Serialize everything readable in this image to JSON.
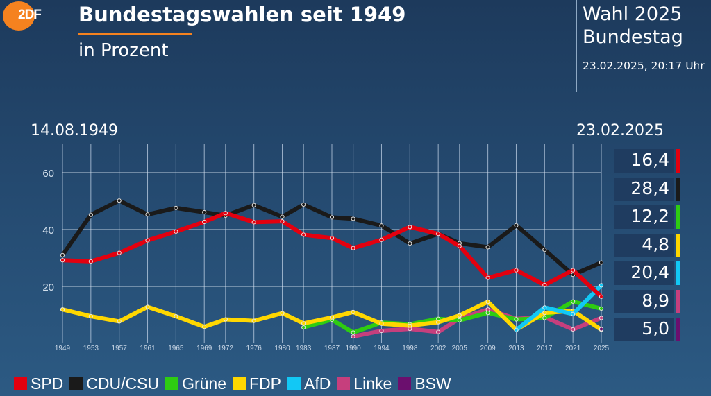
{
  "header": {
    "logo_text": "2DF",
    "title": "Bundestagswahlen seit 1949",
    "subtitle": "in Prozent",
    "right_title_line1": "Wahl 2025",
    "right_title_line2": "Bundestag",
    "timestamp": "23.02.2025, 20:17 Uhr",
    "accent_color": "#f5821f"
  },
  "date_start": "14.08.1949",
  "date_end": "23.02.2025",
  "results_2025": [
    {
      "party": "SPD",
      "value": "16,4",
      "color": "#e3000f"
    },
    {
      "party": "CDU/CSU",
      "value": "28,4",
      "color": "#1a1a1a"
    },
    {
      "party": "Grüne",
      "value": "12,2",
      "color": "#2ecc12"
    },
    {
      "party": "FDP",
      "value": "4,8",
      "color": "#ffd700"
    },
    {
      "party": "AfD",
      "value": "20,4",
      "color": "#12c8f5"
    },
    {
      "party": "Linke",
      "value": "8,9",
      "color": "#c63f7d"
    },
    {
      "party": "BSW",
      "value": "5,0",
      "color": "#6b0f6e"
    }
  ],
  "chart_data": {
    "type": "line",
    "title": "Bundestagswahlen seit 1949",
    "subtitle": "in Prozent",
    "xlabel": "",
    "ylabel": "",
    "ylim": [
      0,
      70
    ],
    "yticks": [
      20,
      40,
      60
    ],
    "grid": true,
    "legend_position": "bottom",
    "x": [
      "1949",
      "1953",
      "1957",
      "1961",
      "1965",
      "1969",
      "1972",
      "1976",
      "1980",
      "1983",
      "1987",
      "1990",
      "1994",
      "1998",
      "2002",
      "2005",
      "2009",
      "2013",
      "2017",
      "2021",
      "2025"
    ],
    "series": [
      {
        "name": "SPD",
        "color": "#e3000f",
        "values": [
          29.2,
          28.8,
          31.8,
          36.2,
          39.3,
          42.7,
          45.8,
          42.6,
          42.9,
          38.2,
          37.0,
          33.5,
          36.4,
          40.9,
          38.5,
          34.2,
          23.0,
          25.7,
          20.5,
          25.7,
          16.4
        ]
      },
      {
        "name": "CDU/CSU",
        "color": "#1a1a1a",
        "values": [
          31.0,
          45.2,
          50.2,
          45.3,
          47.6,
          46.1,
          44.9,
          48.6,
          44.5,
          48.8,
          44.3,
          43.8,
          41.4,
          35.1,
          38.5,
          35.2,
          33.8,
          41.5,
          32.9,
          24.1,
          28.4
        ]
      },
      {
        "name": "Grüne",
        "color": "#2ecc12",
        "values": [
          null,
          null,
          null,
          null,
          null,
          null,
          null,
          null,
          null,
          5.6,
          8.3,
          3.8,
          7.3,
          6.7,
          8.6,
          8.1,
          10.7,
          8.4,
          8.9,
          14.7,
          12.2
        ]
      },
      {
        "name": "FDP",
        "color": "#ffd700",
        "values": [
          11.9,
          9.5,
          7.7,
          12.8,
          9.5,
          5.8,
          8.4,
          7.9,
          10.6,
          7.0,
          9.1,
          11.0,
          6.9,
          6.2,
          7.4,
          9.8,
          14.6,
          4.8,
          10.7,
          11.4,
          4.8
        ]
      },
      {
        "name": "AfD",
        "color": "#12c8f5",
        "values": [
          null,
          null,
          null,
          null,
          null,
          null,
          null,
          null,
          null,
          null,
          null,
          null,
          null,
          null,
          null,
          null,
          null,
          4.7,
          12.6,
          10.3,
          20.4
        ]
      },
      {
        "name": "Linke",
        "color": "#c63f7d",
        "values": [
          null,
          null,
          null,
          null,
          null,
          null,
          null,
          null,
          null,
          null,
          null,
          2.4,
          4.4,
          5.1,
          4.0,
          8.7,
          11.9,
          8.6,
          9.2,
          4.9,
          8.9
        ]
      },
      {
        "name": "BSW",
        "color": "#6b0f6e",
        "values": [
          null,
          null,
          null,
          null,
          null,
          null,
          null,
          null,
          null,
          null,
          null,
          null,
          null,
          null,
          null,
          null,
          null,
          null,
          null,
          null,
          5.0
        ]
      }
    ]
  },
  "legend": [
    {
      "label": "SPD",
      "color": "#e3000f"
    },
    {
      "label": "CDU/CSU",
      "color": "#1a1a1a"
    },
    {
      "label": "Grüne",
      "color": "#2ecc12"
    },
    {
      "label": "FDP",
      "color": "#ffd700"
    },
    {
      "label": "AfD",
      "color": "#12c8f5"
    },
    {
      "label": "Linke",
      "color": "#c63f7d"
    },
    {
      "label": "BSW",
      "color": "#6b0f6e"
    }
  ]
}
